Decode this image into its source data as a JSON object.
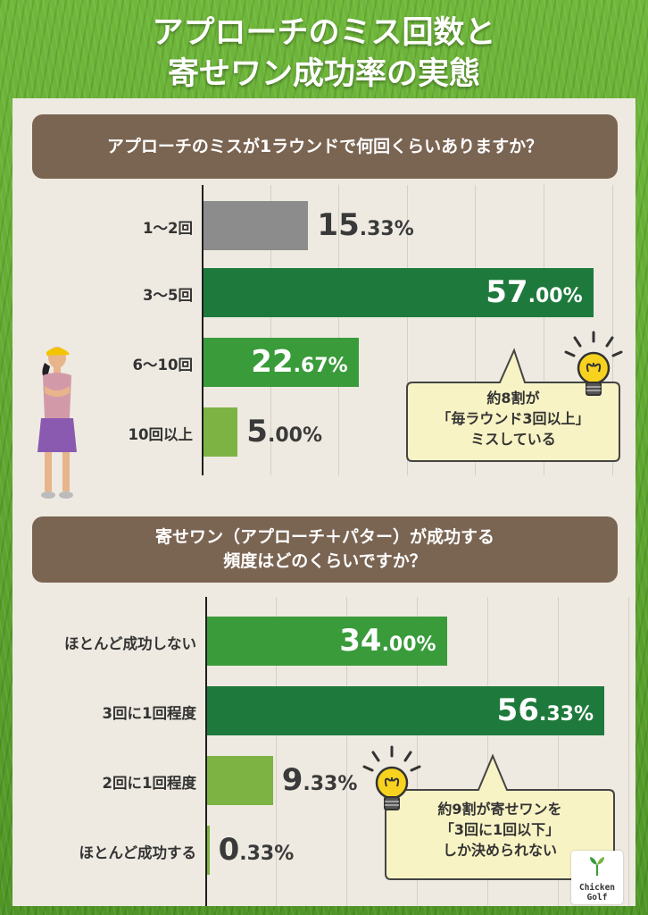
{
  "title": {
    "line1": "アプローチのミス回数と",
    "line2": "寄せワン成功率の実態"
  },
  "colors": {
    "dark_green": "#1e7a3c",
    "mid_green": "#3a9b3a",
    "light_green": "#7cb342",
    "gray": "#8c8c8c",
    "brown": "#7a6452",
    "bubble": "#f8f3c4"
  },
  "chart_data": [
    {
      "type": "bar",
      "orientation": "horizontal",
      "title": "アプローチのミスが1ラウンドで何回くらいありますか？",
      "categories": [
        "1〜2回",
        "3〜5回",
        "6〜10回",
        "10回以上"
      ],
      "values": [
        15.33,
        57.0,
        22.67,
        5.0
      ],
      "labels": [
        {
          "int": "15",
          "dec": ".33%"
        },
        {
          "int": "57",
          "dec": ".00%"
        },
        {
          "int": "22",
          "dec": ".67%"
        },
        {
          "int": "5",
          "dec": ".00%"
        }
      ],
      "bar_colors": [
        "#8c8c8c",
        "#1e7a3c",
        "#3a9b3a",
        "#7cb342"
      ],
      "label_inside": [
        false,
        true,
        true,
        false
      ],
      "xlim": [
        0,
        60
      ],
      "grid": true,
      "callout": [
        "約8割が",
        "「毎ラウンド3回以上」",
        "ミスしている"
      ]
    },
    {
      "type": "bar",
      "orientation": "horizontal",
      "title": "寄せワン（アプローチ＋パター）が成功する頻度はどのくらいですか？",
      "title_lines": [
        "寄せワン（アプローチ＋パター）が成功する",
        "頻度はどのくらいですか？"
      ],
      "categories": [
        "ほとんど成功しない",
        "3回に1回程度",
        "2回に1回程度",
        "ほとんど成功する"
      ],
      "values": [
        34.0,
        56.33,
        9.33,
        0.33
      ],
      "labels": [
        {
          "int": "34",
          "dec": ".00%"
        },
        {
          "int": "56",
          "dec": ".33%"
        },
        {
          "int": "9",
          "dec": ".33%"
        },
        {
          "int": "0",
          "dec": ".33%"
        }
      ],
      "bar_colors": [
        "#3a9b3a",
        "#1e7a3c",
        "#7cb342",
        "#7cb342"
      ],
      "label_inside": [
        true,
        true,
        false,
        false
      ],
      "xlim": [
        0,
        60
      ],
      "grid": true,
      "callout": [
        "約9割が寄せワンを",
        "「3回に1回以下」",
        "しか決められない"
      ]
    }
  ],
  "logo": {
    "line1": "Chicken",
    "line2": "Golf"
  }
}
